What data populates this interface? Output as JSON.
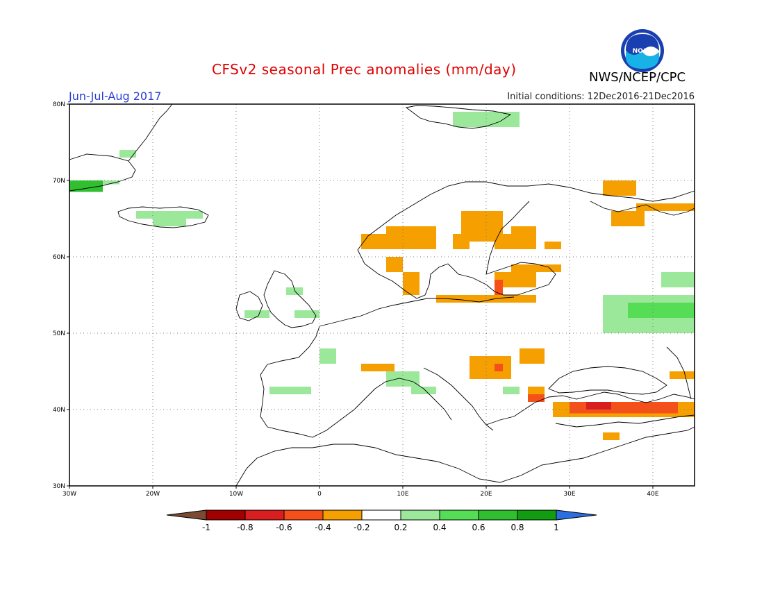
{
  "title": "CFSv2 seasonal Prec anomalies (mm/day)",
  "season": "Jun-Jul-Aug 2017",
  "initial_conditions": "Initial conditions: 12Dec2016-21Dec2016",
  "agency": "NWS/NCEP/CPC",
  "logo_text": "NOAA",
  "map": {
    "lon_range": [
      -30,
      45
    ],
    "lat_range": [
      30,
      80
    ],
    "lon_ticks": [
      {
        "value": -30,
        "label": "30W"
      },
      {
        "value": -20,
        "label": "20W"
      },
      {
        "value": -10,
        "label": "10W"
      },
      {
        "value": 0,
        "label": "0"
      },
      {
        "value": 10,
        "label": "10E"
      },
      {
        "value": 20,
        "label": "20E"
      },
      {
        "value": 30,
        "label": "30E"
      },
      {
        "value": 40,
        "label": "40E"
      }
    ],
    "lat_ticks": [
      {
        "value": 30,
        "label": "30N"
      },
      {
        "value": 40,
        "label": "40N"
      },
      {
        "value": 50,
        "label": "50N"
      },
      {
        "value": 60,
        "label": "60N"
      },
      {
        "value": 70,
        "label": "70N"
      },
      {
        "value": 80,
        "label": "80N"
      }
    ],
    "gridlines": "dotted"
  },
  "colorbar": {
    "labels": [
      "-1",
      "-0.8",
      "-0.6",
      "-0.4",
      "-0.2",
      "0.2",
      "0.4",
      "0.6",
      "0.8",
      "1"
    ],
    "low_end_color": "#7a4a33",
    "high_end_color": "#2a6ee0",
    "colors": [
      "#a00000",
      "#d81e1e",
      "#f5501a",
      "#f5a000",
      "#ffffff",
      "#9be89b",
      "#55dd55",
      "#2fbf2f",
      "#119c11"
    ]
  },
  "anomalies": [
    {
      "name": "greenland-east-coast",
      "lon": [
        -30,
        -26
      ],
      "lat": [
        68.5,
        70
      ],
      "value": 0.7
    },
    {
      "name": "greenland-east-coast-2",
      "lon": [
        -24,
        -22
      ],
      "lat": [
        73,
        74
      ],
      "value": 0.3
    },
    {
      "name": "greenland-east-coast-3",
      "lon": [
        -26,
        -24
      ],
      "lat": [
        69.5,
        70
      ],
      "value": 0.3
    },
    {
      "name": "iceland-north",
      "lon": [
        -22,
        -14
      ],
      "lat": [
        65,
        66
      ],
      "value": 0.3
    },
    {
      "name": "iceland-south",
      "lon": [
        -20,
        -16
      ],
      "lat": [
        64,
        65
      ],
      "value": 0.3
    },
    {
      "name": "svalbard",
      "lon": [
        16,
        24
      ],
      "lat": [
        77,
        79
      ],
      "value": 0.3
    },
    {
      "name": "norway-coast",
      "lon": [
        8,
        14
      ],
      "lat": [
        61,
        64
      ],
      "value": -0.3
    },
    {
      "name": "norway-west-1",
      "lon": [
        5,
        8
      ],
      "lat": [
        61,
        63
      ],
      "value": -0.3
    },
    {
      "name": "norway-south",
      "lon": [
        8,
        10
      ],
      "lat": [
        58,
        60
      ],
      "value": -0.3
    },
    {
      "name": "sweden-north",
      "lon": [
        17,
        22
      ],
      "lat": [
        62,
        66
      ],
      "value": -0.3
    },
    {
      "name": "sweden-mid",
      "lon": [
        16,
        18
      ],
      "lat": [
        61,
        63
      ],
      "value": -0.3
    },
    {
      "name": "finland-south",
      "lon": [
        21,
        26
      ],
      "lat": [
        61,
        63
      ],
      "value": -0.3
    },
    {
      "name": "finland-north",
      "lon": [
        23,
        26
      ],
      "lat": [
        63,
        64
      ],
      "value": -0.3
    },
    {
      "name": "northwest-russia",
      "lon": [
        27,
        29
      ],
      "lat": [
        61,
        62
      ],
      "value": -0.3
    },
    {
      "name": "baltic-1",
      "lon": [
        23,
        29
      ],
      "lat": [
        58,
        59
      ],
      "value": -0.3
    },
    {
      "name": "baltic-2",
      "lon": [
        21,
        26
      ],
      "lat": [
        56,
        58
      ],
      "value": -0.3
    },
    {
      "name": "poland-north",
      "lon": [
        14,
        26
      ],
      "lat": [
        54,
        55
      ],
      "value": -0.3
    },
    {
      "name": "latvia-red",
      "lon": [
        21,
        22
      ],
      "lat": [
        55,
        57
      ],
      "value": -0.5
    },
    {
      "name": "denmark",
      "lon": [
        10,
        12
      ],
      "lat": [
        55,
        58
      ],
      "value": -0.3
    },
    {
      "name": "kola-1",
      "lon": [
        34,
        38
      ],
      "lat": [
        68,
        70
      ],
      "value": -0.3
    },
    {
      "name": "kola-2",
      "lon": [
        38,
        45
      ],
      "lat": [
        66,
        67
      ],
      "value": -0.3
    },
    {
      "name": "kola-3",
      "lon": [
        35,
        39
      ],
      "lat": [
        64,
        66
      ],
      "value": -0.3
    },
    {
      "name": "russia-north-green",
      "lon": [
        34,
        45
      ],
      "lat": [
        50,
        55
      ],
      "value": 0.3
    },
    {
      "name": "russia-north-green-2",
      "lon": [
        41,
        45
      ],
      "lat": [
        56,
        58
      ],
      "value": 0.3
    },
    {
      "name": "russia-dense-green",
      "lon": [
        37,
        45
      ],
      "lat": [
        52,
        54
      ],
      "value": 0.5
    },
    {
      "name": "britain-north",
      "lon": [
        -4,
        -2
      ],
      "lat": [
        55,
        56
      ],
      "value": 0.3
    },
    {
      "name": "britain-west",
      "lon": [
        -9,
        -6
      ],
      "lat": [
        52,
        53
      ],
      "value": 0.3
    },
    {
      "name": "britain-south",
      "lon": [
        -3,
        0
      ],
      "lat": [
        52,
        53
      ],
      "value": 0.3
    },
    {
      "name": "france",
      "lon": [
        0,
        2
      ],
      "lat": [
        46,
        48
      ],
      "value": 0.3
    },
    {
      "name": "spain-north",
      "lon": [
        -6,
        -1
      ],
      "lat": [
        42,
        43
      ],
      "value": 0.3
    },
    {
      "name": "alps-orange",
      "lon": [
        5,
        9
      ],
      "lat": [
        45,
        46
      ],
      "value": -0.3
    },
    {
      "name": "alps-green",
      "lon": [
        8,
        12
      ],
      "lat": [
        43,
        45
      ],
      "value": 0.3
    },
    {
      "name": "italy-green",
      "lon": [
        11,
        14
      ],
      "lat": [
        42,
        43
      ],
      "value": 0.3
    },
    {
      "name": "hungary-orange",
      "lon": [
        18,
        23
      ],
      "lat": [
        44,
        47
      ],
      "value": -0.3
    },
    {
      "name": "hungary-red",
      "lon": [
        21,
        22
      ],
      "lat": [
        45,
        46
      ],
      "value": -0.5
    },
    {
      "name": "romania-orange",
      "lon": [
        24,
        27
      ],
      "lat": [
        46,
        48
      ],
      "value": -0.3
    },
    {
      "name": "bulgaria-orange",
      "lon": [
        25,
        27
      ],
      "lat": [
        41,
        43
      ],
      "value": -0.3
    },
    {
      "name": "bulgaria-red",
      "lon": [
        25,
        27
      ],
      "lat": [
        41,
        42
      ],
      "value": -0.5
    },
    {
      "name": "balkans-green",
      "lon": [
        22,
        24
      ],
      "lat": [
        42,
        43
      ],
      "value": 0.3
    },
    {
      "name": "turkey-orange",
      "lon": [
        28,
        45
      ],
      "lat": [
        39,
        41
      ],
      "value": -0.3
    },
    {
      "name": "turkey-red",
      "lon": [
        30,
        43
      ],
      "lat": [
        39.5,
        41
      ],
      "value": -0.6
    },
    {
      "name": "turkey-darkred",
      "lon": [
        32,
        35
      ],
      "lat": [
        40,
        41
      ],
      "value": -0.8
    },
    {
      "name": "caucasus-orange",
      "lon": [
        42,
        45
      ],
      "lat": [
        44,
        45
      ],
      "value": -0.3
    },
    {
      "name": "cyprus-orange",
      "lon": [
        34,
        36
      ],
      "lat": [
        36,
        37
      ],
      "value": -0.3
    }
  ]
}
